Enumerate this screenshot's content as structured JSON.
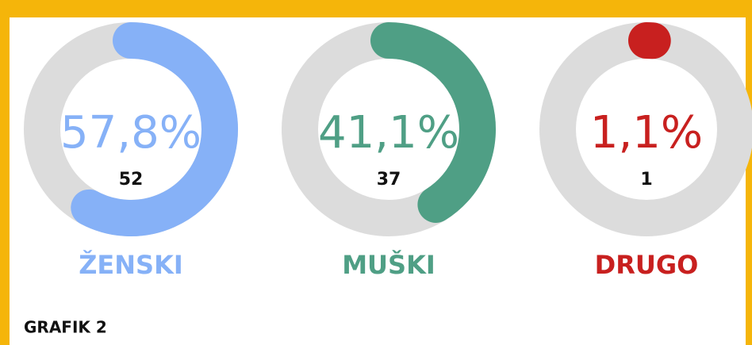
{
  "chart_data": [
    {
      "type": "gauge",
      "title": "ŽENSKI",
      "values": [
        57.8
      ],
      "value_labels": [
        "57,8%"
      ],
      "counts": [
        52
      ],
      "color": "#86b1f7"
    },
    {
      "type": "gauge",
      "title": "MUŠKI",
      "values": [
        41.1
      ],
      "value_labels": [
        "41,1%"
      ],
      "counts": [
        37
      ],
      "color": "#4f9f85"
    },
    {
      "type": "gauge",
      "title": "DRUGO",
      "values": [
        1.1
      ],
      "value_labels": [
        "1,1%"
      ],
      "counts": [
        1
      ],
      "color": "#c8201f"
    }
  ],
  "footer": "GRAFIK 2"
}
